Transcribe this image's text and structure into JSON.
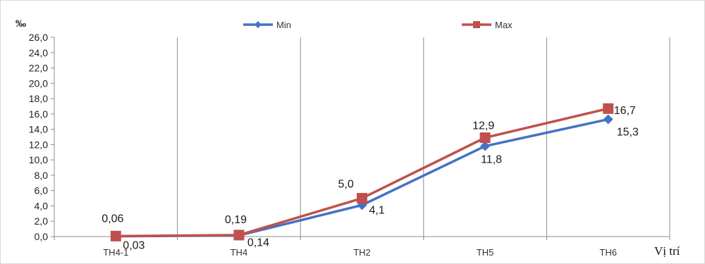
{
  "chart_data": {
    "type": "line",
    "ylabel": "‰",
    "xlabel": "Vị trí",
    "categories": [
      "TH4-1",
      "TH4",
      "TH2",
      "TH5",
      "TH6"
    ],
    "ylim": [
      0,
      26
    ],
    "y_ticks": [
      "0,0",
      "2,0",
      "4,0",
      "6,0",
      "8,0",
      "10,0",
      "12,0",
      "14,0",
      "16,0",
      "18,0",
      "20,0",
      "22,0",
      "24,0",
      "26,0"
    ],
    "grid": "vertical category separators",
    "legend_position": "top",
    "series": [
      {
        "name": "Min",
        "color": "#4472C4",
        "marker": "diamond",
        "values": [
          0.03,
          0.14,
          4.1,
          11.8,
          15.3
        ],
        "labels": [
          "0,03",
          "0,14",
          "4,1",
          "11,8",
          "15,3"
        ]
      },
      {
        "name": "Max",
        "color": "#C0504D",
        "marker": "square",
        "values": [
          0.06,
          0.19,
          5.0,
          12.9,
          16.7
        ],
        "labels": [
          "0,06",
          "0,19",
          "5,0",
          "12,9",
          "16,7"
        ]
      }
    ]
  }
}
